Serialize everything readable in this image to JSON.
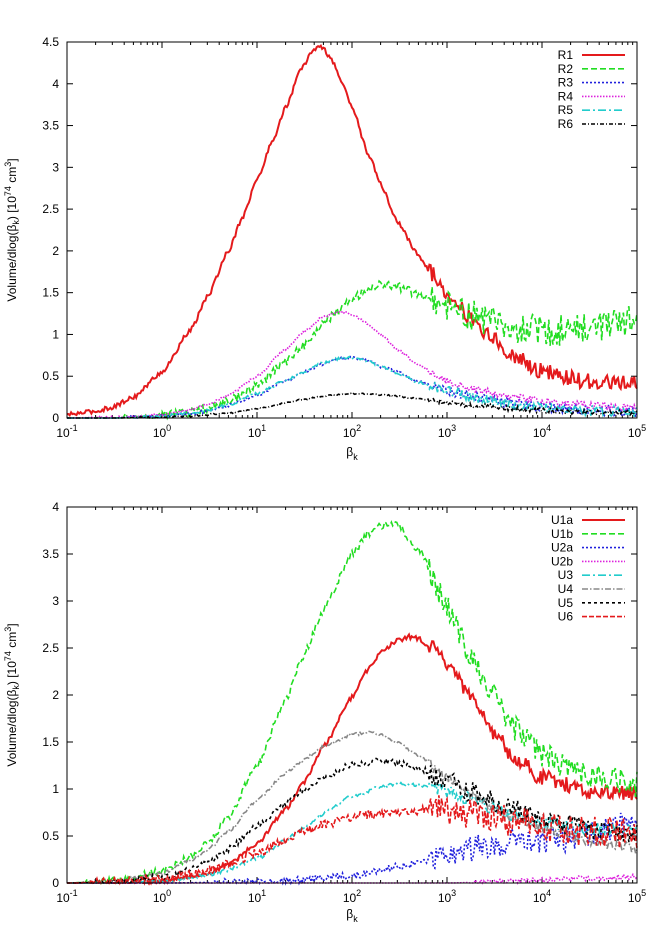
{
  "chart_data": [
    {
      "type": "line",
      "id": "top",
      "xscale": "log",
      "xlim": [
        0.1,
        100000
      ],
      "ylim": [
        0,
        4.5
      ],
      "xlabel": "β",
      "xlabel_sub": "k",
      "ylabel_parts": [
        "Volume/dlog(β",
        "k",
        ") [10",
        "74",
        " cm",
        "3",
        "]"
      ],
      "x_ticks": [
        {
          "base": "10",
          "exp": "-1",
          "value": 0.1
        },
        {
          "base": "10",
          "exp": "0",
          "value": 1
        },
        {
          "base": "10",
          "exp": "1",
          "value": 10
        },
        {
          "base": "10",
          "exp": "2",
          "value": 100
        },
        {
          "base": "10",
          "exp": "3",
          "value": 1000
        },
        {
          "base": "10",
          "exp": "4",
          "value": 10000
        },
        {
          "base": "10",
          "exp": "5",
          "value": 100000
        }
      ],
      "y_ticks": [
        {
          "label": "0",
          "value": 0
        },
        {
          "label": "0.5",
          "value": 0.5
        },
        {
          "label": "1",
          "value": 1
        },
        {
          "label": "1.5",
          "value": 1.5
        },
        {
          "label": "2",
          "value": 2
        },
        {
          "label": "2.5",
          "value": 2.5
        },
        {
          "label": "3",
          "value": 3
        },
        {
          "label": "3.5",
          "value": 3.5
        },
        {
          "label": "4",
          "value": 4
        },
        {
          "label": "4.5",
          "value": 4.5
        }
      ],
      "legend": "top-right",
      "series": [
        {
          "name": "R1",
          "color": "#e41a1c",
          "dash": "solid",
          "noise": 0.006,
          "x": [
            0.1,
            0.2,
            0.3,
            0.5,
            1,
            2,
            3,
            5,
            7,
            10,
            15,
            20,
            30,
            40,
            45,
            50,
            60,
            80,
            100,
            150,
            200,
            300,
            500,
            700,
            1000,
            2000,
            3000,
            5000,
            10000,
            20000,
            30000,
            50000,
            100000
          ],
          "y": [
            0.04,
            0.08,
            0.13,
            0.25,
            0.55,
            1.05,
            1.45,
            2.0,
            2.4,
            2.85,
            3.35,
            3.72,
            4.2,
            4.42,
            4.44,
            4.42,
            4.3,
            4.0,
            3.72,
            3.15,
            2.8,
            2.35,
            1.95,
            1.72,
            1.5,
            1.14,
            0.95,
            0.74,
            0.56,
            0.47,
            0.44,
            0.42,
            0.4
          ]
        },
        {
          "name": "R2",
          "color": "#22dd22",
          "dash": "6,3",
          "noise": 0.012,
          "x": [
            0.1,
            0.3,
            1,
            2,
            3,
            5,
            10,
            20,
            30,
            50,
            70,
            100,
            150,
            200,
            300,
            500,
            1000,
            2000,
            3000,
            5000,
            10000,
            20000,
            30000,
            50000,
            100000
          ],
          "y": [
            0.0,
            0.0,
            0.03,
            0.07,
            0.11,
            0.2,
            0.39,
            0.67,
            0.86,
            1.12,
            1.28,
            1.42,
            1.55,
            1.6,
            1.57,
            1.48,
            1.35,
            1.22,
            1.14,
            1.08,
            1.04,
            1.05,
            1.08,
            1.12,
            1.2
          ]
        },
        {
          "name": "R3",
          "color": "#2222dd",
          "dash": "2,2",
          "noise": 0.004,
          "x": [
            0.1,
            0.3,
            1,
            2,
            3,
            5,
            10,
            20,
            30,
            50,
            70,
            100,
            150,
            200,
            300,
            500,
            1000,
            2000,
            5000,
            10000,
            30000,
            100000
          ],
          "y": [
            0.0,
            0.0,
            0.02,
            0.05,
            0.08,
            0.15,
            0.27,
            0.44,
            0.54,
            0.65,
            0.71,
            0.72,
            0.68,
            0.62,
            0.55,
            0.44,
            0.33,
            0.25,
            0.17,
            0.13,
            0.1,
            0.07
          ]
        },
        {
          "name": "R4",
          "color": "#dd22dd",
          "dash": "1.5,1.5",
          "noise": 0.003,
          "x": [
            0.1,
            0.3,
            1,
            2,
            3,
            5,
            10,
            20,
            30,
            50,
            70,
            80,
            100,
            150,
            200,
            300,
            500,
            1000,
            2000,
            5000,
            10000,
            30000,
            100000
          ],
          "y": [
            0.0,
            0.01,
            0.04,
            0.1,
            0.16,
            0.27,
            0.5,
            0.82,
            1.02,
            1.21,
            1.27,
            1.27,
            1.24,
            1.12,
            1.0,
            0.82,
            0.63,
            0.44,
            0.33,
            0.24,
            0.2,
            0.15,
            0.12
          ]
        },
        {
          "name": "R5",
          "color": "#22cccc",
          "dash": "8,3,2,3",
          "noise": 0.004,
          "x": [
            0.1,
            0.3,
            1,
            2,
            3,
            5,
            10,
            20,
            30,
            50,
            70,
            100,
            150,
            200,
            300,
            500,
            1000,
            2000,
            5000,
            10000,
            30000,
            100000
          ],
          "y": [
            0.0,
            0.0,
            0.02,
            0.06,
            0.09,
            0.16,
            0.29,
            0.45,
            0.55,
            0.66,
            0.71,
            0.72,
            0.68,
            0.62,
            0.54,
            0.43,
            0.32,
            0.24,
            0.16,
            0.12,
            0.09,
            0.07
          ]
        },
        {
          "name": "R6",
          "color": "#000000",
          "dash": "4,2,1,2",
          "noise": 0.002,
          "x": [
            0.1,
            0.3,
            1,
            2,
            3,
            5,
            10,
            20,
            30,
            50,
            70,
            100,
            150,
            200,
            300,
            500,
            1000,
            2000,
            5000,
            10000,
            30000,
            100000
          ],
          "y": [
            0.0,
            0.0,
            0.01,
            0.02,
            0.04,
            0.06,
            0.11,
            0.18,
            0.22,
            0.26,
            0.28,
            0.29,
            0.29,
            0.28,
            0.26,
            0.23,
            0.19,
            0.15,
            0.11,
            0.09,
            0.07,
            0.06
          ]
        }
      ]
    },
    {
      "type": "line",
      "id": "bottom",
      "xscale": "log",
      "xlim": [
        0.1,
        100000
      ],
      "ylim": [
        0,
        4
      ],
      "xlabel": "β",
      "xlabel_sub": "k",
      "ylabel_parts": [
        "Volume/dlog(β",
        "k",
        ") [10",
        "74",
        " cm",
        "3",
        "]"
      ],
      "x_ticks": [
        {
          "base": "10",
          "exp": "-1",
          "value": 0.1
        },
        {
          "base": "10",
          "exp": "0",
          "value": 1
        },
        {
          "base": "10",
          "exp": "1",
          "value": 10
        },
        {
          "base": "10",
          "exp": "2",
          "value": 100
        },
        {
          "base": "10",
          "exp": "3",
          "value": 1000
        },
        {
          "base": "10",
          "exp": "4",
          "value": 10000
        },
        {
          "base": "10",
          "exp": "5",
          "value": 100000
        }
      ],
      "y_ticks": [
        {
          "label": "0",
          "value": 0
        },
        {
          "label": "0.5",
          "value": 0.5
        },
        {
          "label": "1",
          "value": 1
        },
        {
          "label": "1.5",
          "value": 1.5
        },
        {
          "label": "2",
          "value": 2
        },
        {
          "label": "2.5",
          "value": 2.5
        },
        {
          "label": "3",
          "value": 3
        },
        {
          "label": "3.5",
          "value": 3.5
        },
        {
          "label": "4",
          "value": 4
        }
      ],
      "legend": "top-right",
      "series": [
        {
          "name": "U1a",
          "color": "#e41a1c",
          "dash": "solid",
          "noise": 0.006,
          "x": [
            0.1,
            0.3,
            1,
            3,
            5,
            10,
            20,
            30,
            50,
            100,
            150,
            200,
            300,
            400,
            500,
            700,
            1000,
            2000,
            3000,
            5000,
            10000,
            30000,
            100000
          ],
          "y": [
            0.0,
            0.0,
            0.02,
            0.1,
            0.2,
            0.42,
            0.78,
            1.05,
            1.45,
            1.98,
            2.28,
            2.45,
            2.58,
            2.62,
            2.6,
            2.5,
            2.32,
            1.9,
            1.62,
            1.35,
            1.12,
            0.98,
            0.95
          ]
        },
        {
          "name": "U1b",
          "color": "#22dd22",
          "dash": "6,3",
          "noise": 0.01,
          "x": [
            0.1,
            0.3,
            1,
            2,
            3,
            5,
            10,
            20,
            30,
            50,
            100,
            150,
            200,
            250,
            300,
            500,
            1000,
            2000,
            3000,
            5000,
            10000,
            30000,
            100000
          ],
          "y": [
            0.0,
            0.02,
            0.12,
            0.28,
            0.42,
            0.7,
            1.25,
            1.95,
            2.4,
            2.9,
            3.5,
            3.72,
            3.8,
            3.83,
            3.8,
            3.55,
            2.95,
            2.3,
            2.0,
            1.65,
            1.35,
            1.15,
            1.05
          ]
        },
        {
          "name": "U2a",
          "color": "#2222dd",
          "dash": "2,2",
          "noise": 0.01,
          "x": [
            0.1,
            1,
            10,
            30,
            100,
            300,
            1000,
            2000,
            3000,
            5000,
            10000,
            30000,
            100000
          ],
          "y": [
            0.0,
            0.0,
            0.01,
            0.03,
            0.08,
            0.17,
            0.3,
            0.38,
            0.42,
            0.44,
            0.44,
            0.5,
            0.65
          ]
        },
        {
          "name": "U2b",
          "color": "#dd22dd",
          "dash": "1.5,1.5",
          "noise": 0.002,
          "x": [
            0.1,
            100,
            1000,
            3000,
            10000,
            30000,
            100000
          ],
          "y": [
            0.0,
            0.0,
            0.0,
            0.01,
            0.03,
            0.05,
            0.07
          ]
        },
        {
          "name": "U3",
          "color": "#22cccc",
          "dash": "8,3,2,3",
          "noise": 0.005,
          "x": [
            0.1,
            0.3,
            1,
            3,
            5,
            10,
            20,
            30,
            50,
            100,
            200,
            300,
            400,
            500,
            1000,
            2000,
            3000,
            5000,
            10000,
            30000,
            100000
          ],
          "y": [
            0.0,
            0.0,
            0.02,
            0.08,
            0.14,
            0.26,
            0.45,
            0.58,
            0.74,
            0.92,
            1.02,
            1.05,
            1.05,
            1.04,
            0.98,
            0.88,
            0.8,
            0.72,
            0.65,
            0.58,
            0.55
          ]
        },
        {
          "name": "U4",
          "color": "#888888",
          "dash": "6,2,1.5,2",
          "noise": 0.004,
          "x": [
            0.1,
            0.3,
            1,
            2,
            3,
            5,
            10,
            20,
            30,
            50,
            100,
            150,
            200,
            300,
            500,
            1000,
            2000,
            5000,
            10000,
            30000,
            100000
          ],
          "y": [
            0.0,
            0.02,
            0.1,
            0.24,
            0.35,
            0.55,
            0.88,
            1.17,
            1.3,
            1.45,
            1.58,
            1.6,
            1.58,
            1.5,
            1.35,
            1.12,
            0.9,
            0.7,
            0.58,
            0.45,
            0.37
          ]
        },
        {
          "name": "U5",
          "color": "#000000",
          "dash": "3,3",
          "noise": 0.008,
          "x": [
            0.1,
            0.3,
            1,
            2,
            3,
            5,
            10,
            20,
            30,
            50,
            100,
            200,
            300,
            500,
            1000,
            2000,
            5000,
            10000,
            30000,
            100000
          ],
          "y": [
            0.0,
            0.01,
            0.06,
            0.14,
            0.22,
            0.36,
            0.6,
            0.85,
            0.98,
            1.12,
            1.26,
            1.3,
            1.28,
            1.22,
            1.1,
            0.95,
            0.78,
            0.68,
            0.58,
            0.52
          ]
        },
        {
          "name": "U6",
          "color": "#e41a1c",
          "dash": "5,2",
          "noise": 0.012,
          "x": [
            0.1,
            0.3,
            1,
            2,
            3,
            5,
            10,
            20,
            30,
            50,
            100,
            200,
            300,
            500,
            700,
            1000,
            2000,
            3000,
            5000,
            10000,
            30000,
            100000
          ],
          "y": [
            0.0,
            0.01,
            0.04,
            0.09,
            0.13,
            0.2,
            0.32,
            0.46,
            0.54,
            0.62,
            0.7,
            0.74,
            0.76,
            0.77,
            0.78,
            0.77,
            0.74,
            0.7,
            0.65,
            0.6,
            0.55,
            0.52
          ]
        }
      ]
    }
  ]
}
